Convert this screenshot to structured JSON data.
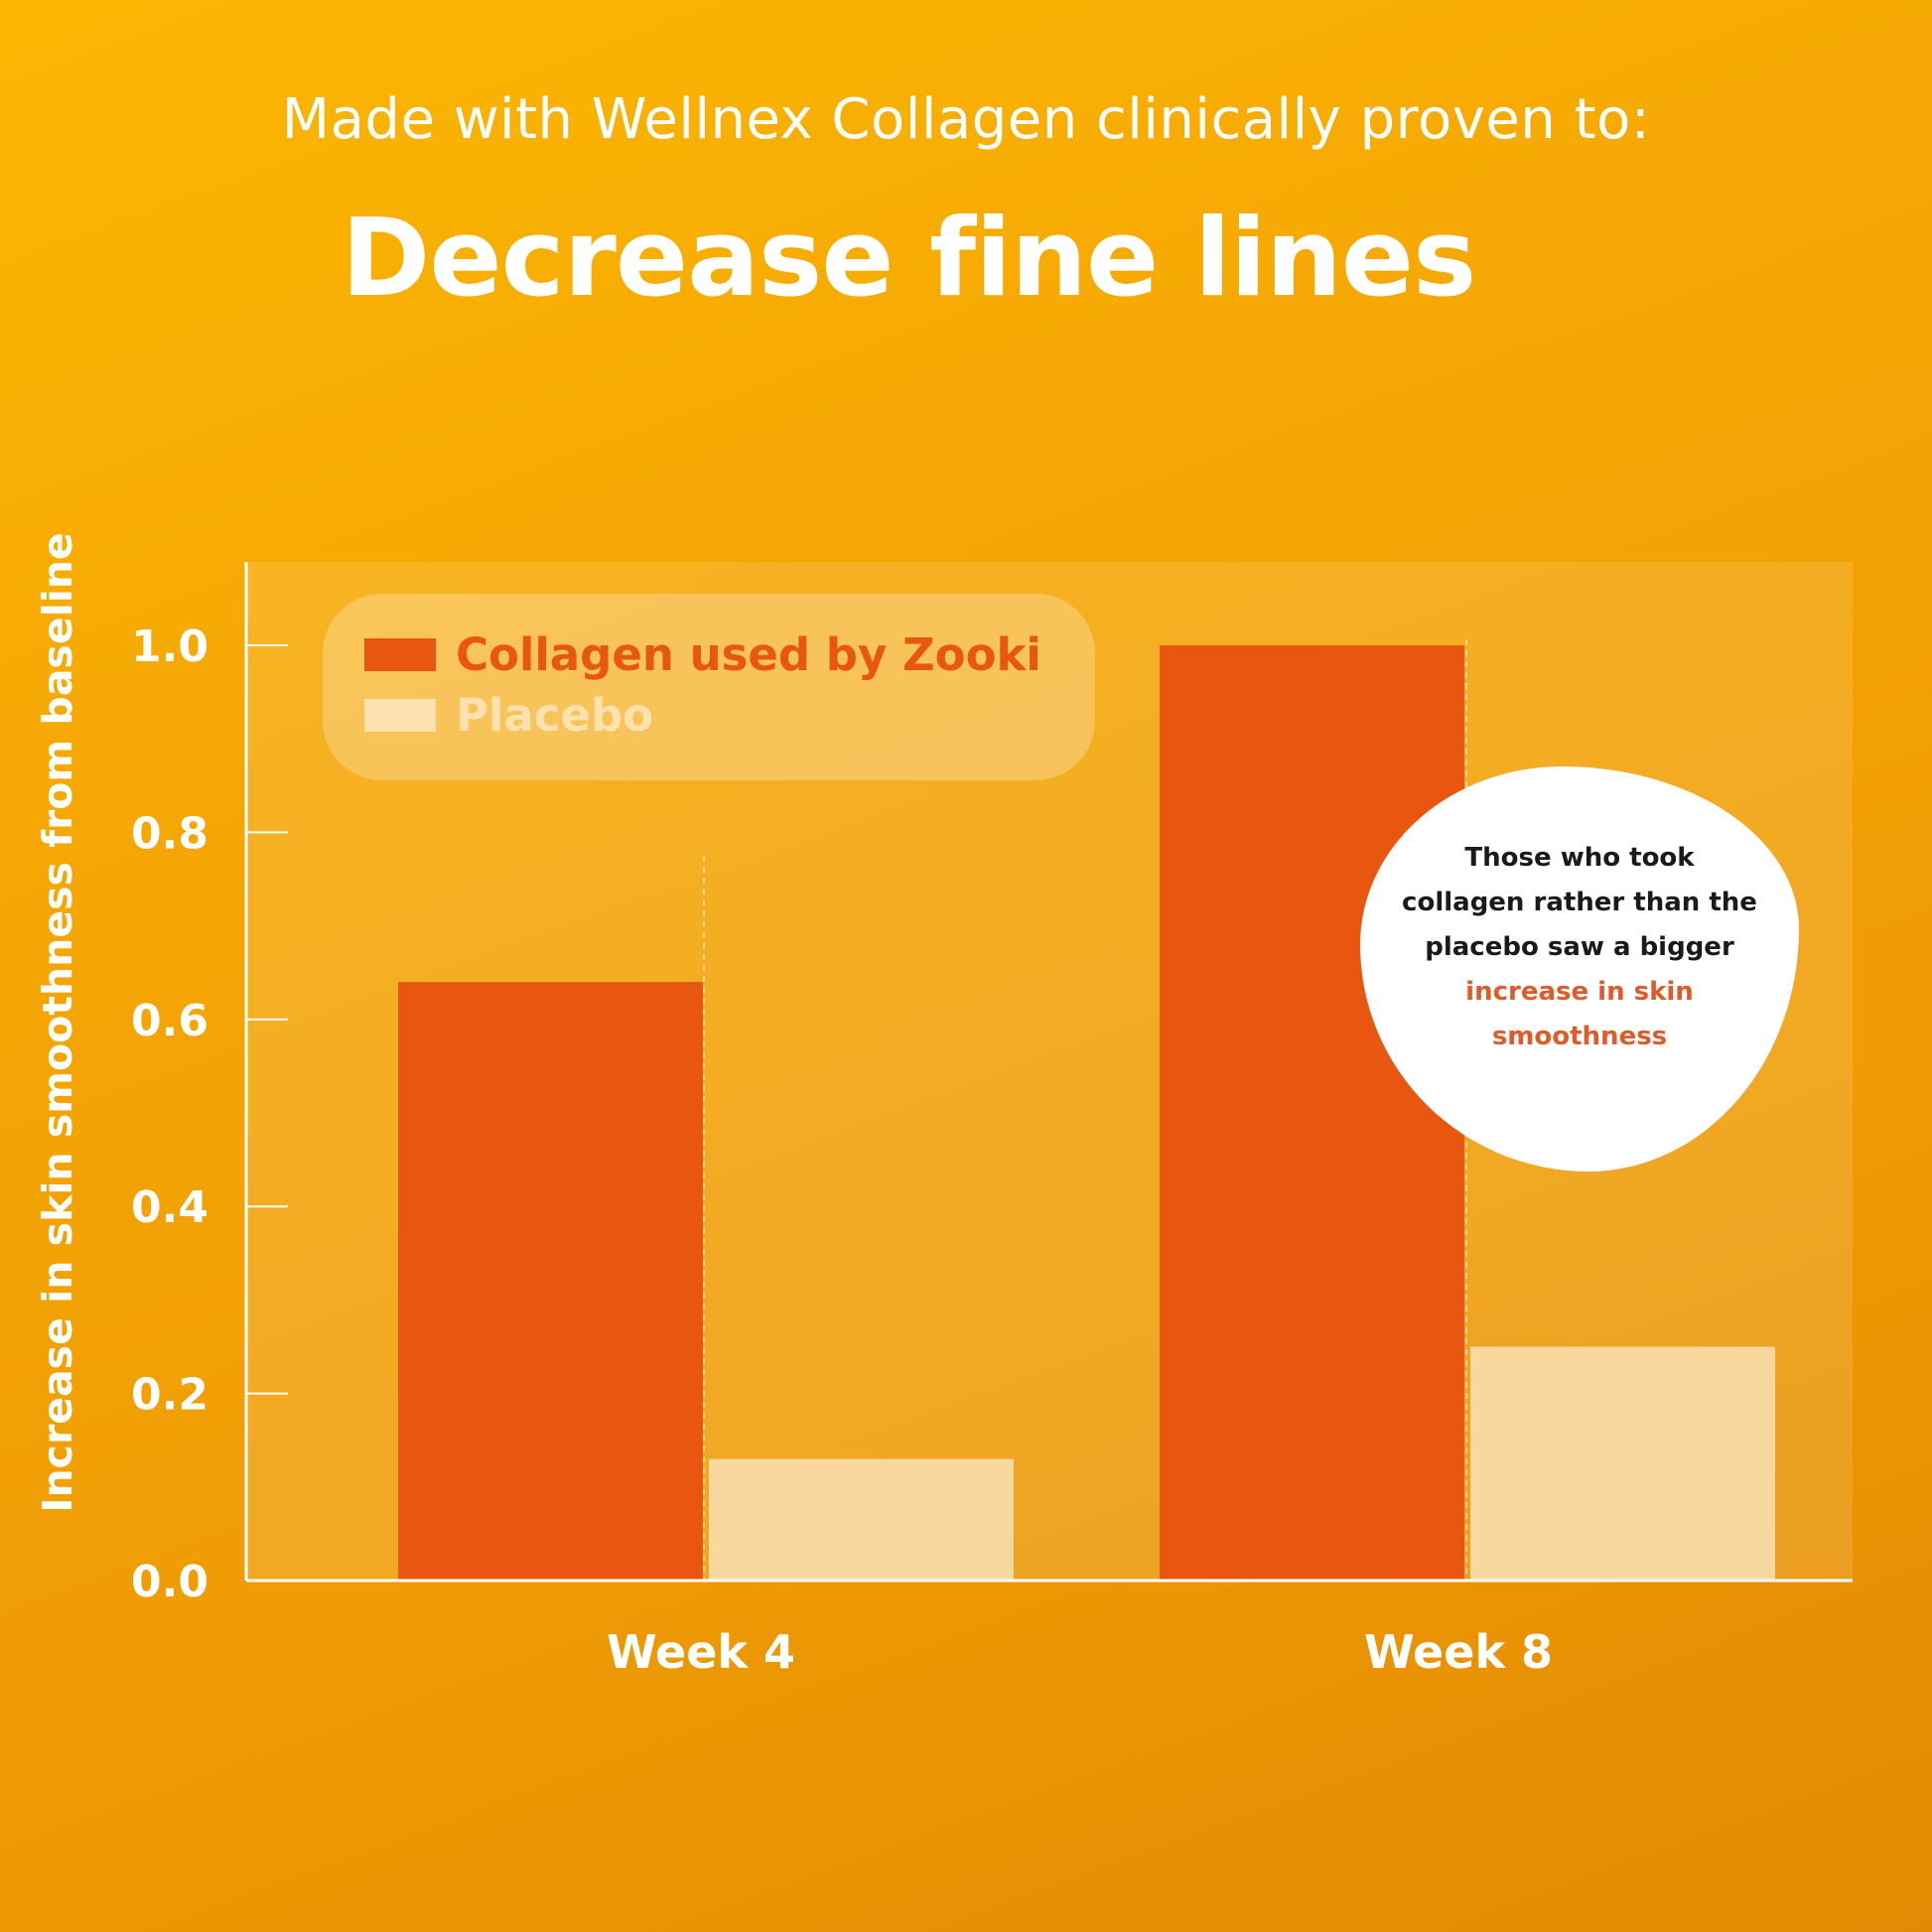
{
  "header": {
    "subtitle": "Made with Wellnex Collagen clinically proven to:",
    "title": "Decrease fine lines"
  },
  "colors": {
    "collagen": "#e8560f",
    "placebo": "#f7d89e",
    "axis": "#ffffff",
    "highlight": "#e05a2a"
  },
  "legend": {
    "collagen_label": "Collagen used by Zooki",
    "placebo_label": "Placebo"
  },
  "callout": {
    "text": "Those who took collagen rather than the placebo saw a bigger",
    "highlight": "increase in skin smoothness"
  },
  "chart_data": {
    "type": "bar",
    "title": "Decrease fine lines",
    "xlabel": "",
    "ylabel": "Increase in skin smoothness from baseline",
    "categories": [
      "Week 4",
      "Week 8"
    ],
    "series": [
      {
        "name": "Collagen used by Zooki",
        "values": [
          0.64,
          1.0
        ],
        "color": "#e8560f"
      },
      {
        "name": "Placebo",
        "values": [
          0.13,
          0.25
        ],
        "color": "#f7d89e"
      }
    ],
    "ylim": [
      0,
      1.08
    ],
    "yticks": [
      0.0,
      0.2,
      0.4,
      0.6,
      0.8,
      1.0
    ],
    "ytick_labels": [
      "0.0",
      "0.2",
      "0.4",
      "0.6",
      "0.8",
      "1.0"
    ],
    "grid": false,
    "legend_position": "top-left"
  }
}
